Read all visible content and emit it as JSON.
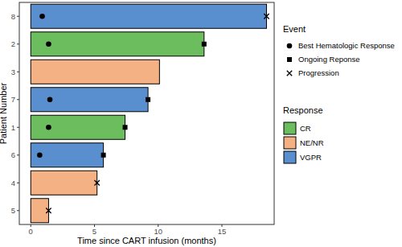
{
  "chart_data": {
    "type": "bar",
    "orientation": "horizontal",
    "x_label": "Time since CART infusion (months)",
    "y_label": "Patient Number",
    "categories": [
      "8",
      "2",
      "3",
      "7",
      "1",
      "6",
      "4",
      "5"
    ],
    "xlim": [
      -0.9,
      19.1
    ],
    "xticks": [
      0,
      5,
      10,
      15
    ],
    "grid": false,
    "legend": "right",
    "response_legend_title": "Response",
    "event_legend_title": "Event",
    "series": [
      {
        "name": "CR",
        "color": "#6cbd5e",
        "values": [
          null,
          13.6,
          null,
          null,
          7.4,
          null,
          null,
          null
        ]
      },
      {
        "name": "NE/NR",
        "color": "#f4b183",
        "values": [
          null,
          null,
          10.1,
          null,
          null,
          null,
          5.2,
          1.4
        ]
      },
      {
        "name": "VGPR",
        "color": "#5a8fcf",
        "values": [
          18.5,
          null,
          null,
          9.2,
          null,
          5.7,
          null,
          null
        ]
      }
    ],
    "events": [
      {
        "name": "Best Hematologic Response",
        "type": "scatter",
        "marker": "circle",
        "color": "#000000",
        "values": [
          0.9,
          1.4,
          null,
          1.5,
          1.4,
          0.7,
          null,
          null
        ]
      },
      {
        "name": "Ongoing Reponse",
        "type": "scatter",
        "marker": "square",
        "color": "#000000",
        "values": [
          null,
          13.6,
          null,
          9.2,
          7.4,
          5.7,
          null,
          null
        ]
      },
      {
        "name": "Progression",
        "type": "scatter",
        "marker": "x",
        "color": "#000000",
        "values": [
          18.5,
          null,
          null,
          null,
          null,
          null,
          5.2,
          1.4
        ]
      }
    ]
  }
}
